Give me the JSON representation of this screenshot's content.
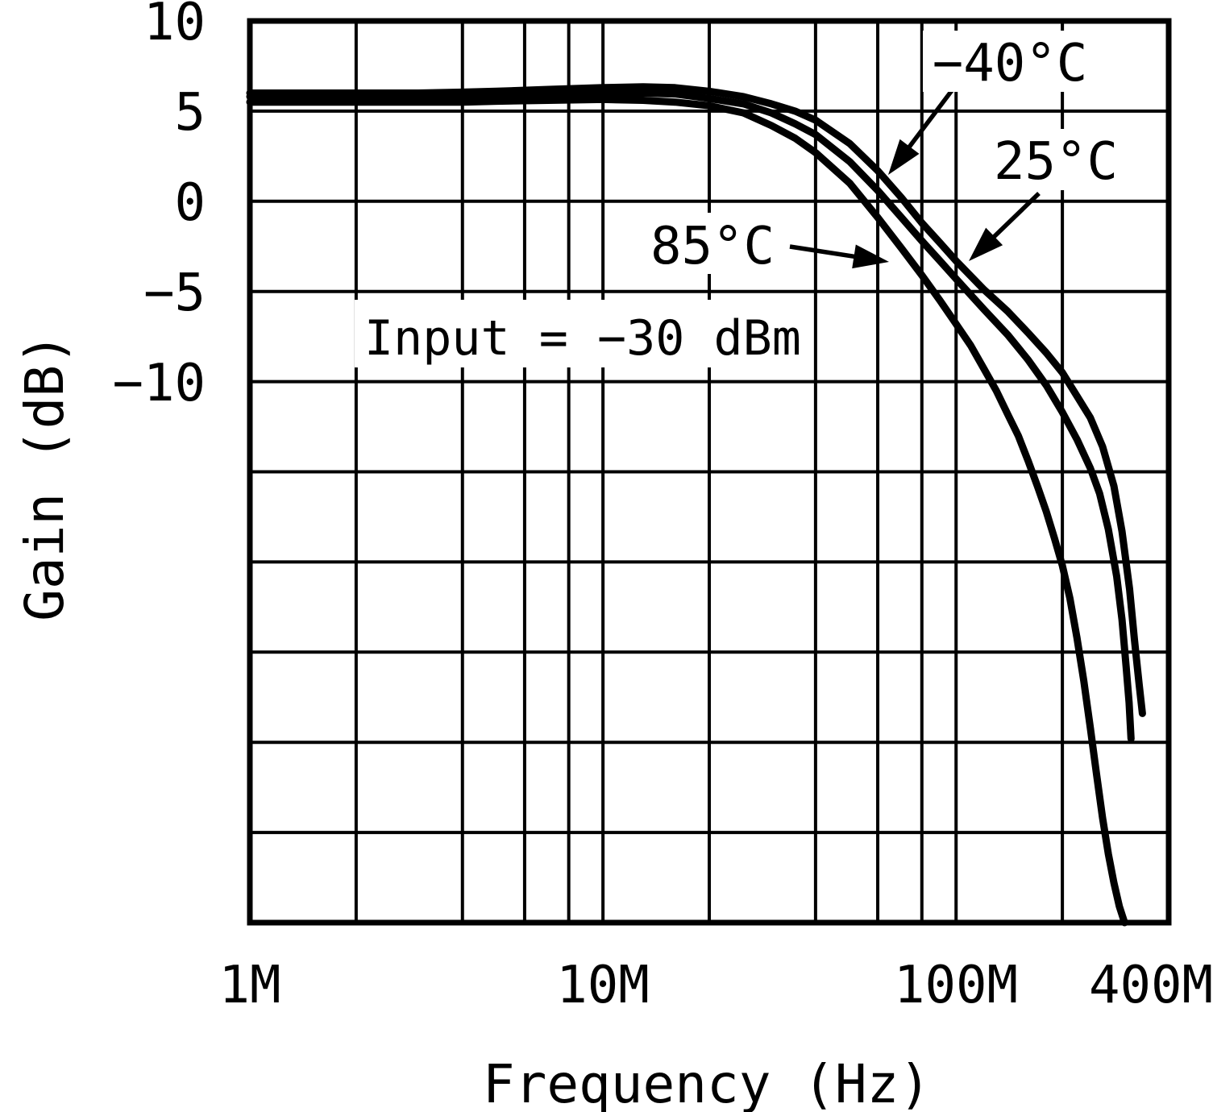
{
  "chart_data": {
    "type": "line",
    "title": "",
    "xlabel": "Frequency (Hz)",
    "ylabel": "Gain (dB)",
    "x_scale": "log",
    "x_unit": "MHz",
    "xlim_MHz": [
      1,
      400
    ],
    "ylim_dB": [
      -40,
      10
    ],
    "grid": true,
    "x_gridlines_MHz": [
      1,
      2,
      4,
      6,
      8,
      10,
      20,
      40,
      60,
      80,
      100,
      200,
      400
    ],
    "y_gridline_step_dB": 5,
    "x_tick_labels": [
      "1M",
      "10M",
      "100M",
      "400M"
    ],
    "x_tick_values_MHz": [
      1,
      10,
      100,
      400
    ],
    "y_tick_labels": [
      "10",
      "5",
      "0",
      "−5",
      "−10"
    ],
    "y_tick_values_dB": [
      10,
      5,
      0,
      -5,
      -10
    ],
    "annotation": "Input = −30 dBm",
    "legend_position": "arrow-annotations-inside-plot",
    "series": [
      {
        "name": "−40°C",
        "points": [
          [
            1,
            6.0
          ],
          [
            1.5,
            6.0
          ],
          [
            2,
            6.0
          ],
          [
            3,
            6.0
          ],
          [
            4,
            6.05
          ],
          [
            5,
            6.1
          ],
          [
            7,
            6.2
          ],
          [
            10,
            6.3
          ],
          [
            13,
            6.35
          ],
          [
            16,
            6.3
          ],
          [
            20,
            6.1
          ],
          [
            25,
            5.8
          ],
          [
            30,
            5.4
          ],
          [
            35,
            5.0
          ],
          [
            40,
            4.5
          ],
          [
            50,
            3.2
          ],
          [
            60,
            1.7
          ],
          [
            70,
            0.2
          ],
          [
            80,
            -1.2
          ],
          [
            90,
            -2.3
          ],
          [
            100,
            -3.3
          ],
          [
            120,
            -4.9
          ],
          [
            140,
            -6.1
          ],
          [
            160,
            -7.3
          ],
          [
            180,
            -8.4
          ],
          [
            200,
            -9.5
          ],
          [
            220,
            -10.8
          ],
          [
            240,
            -12.0
          ],
          [
            260,
            -13.6
          ],
          [
            280,
            -15.8
          ],
          [
            295,
            -18.3
          ],
          [
            310,
            -21.5
          ],
          [
            320,
            -24.3
          ],
          [
            330,
            -26.8
          ],
          [
            337,
            -28.4
          ]
        ]
      },
      {
        "name": "25°C",
        "points": [
          [
            1,
            5.8
          ],
          [
            2,
            5.8
          ],
          [
            3,
            5.8
          ],
          [
            4,
            5.8
          ],
          [
            5,
            5.85
          ],
          [
            7,
            5.9
          ],
          [
            10,
            6.0
          ],
          [
            13,
            6.0
          ],
          [
            16,
            5.95
          ],
          [
            20,
            5.7
          ],
          [
            25,
            5.4
          ],
          [
            30,
            4.9
          ],
          [
            35,
            4.3
          ],
          [
            40,
            3.7
          ],
          [
            50,
            2.2
          ],
          [
            60,
            0.6
          ],
          [
            70,
            -0.9
          ],
          [
            80,
            -2.2
          ],
          [
            90,
            -3.3
          ],
          [
            100,
            -4.3
          ],
          [
            120,
            -6.0
          ],
          [
            140,
            -7.4
          ],
          [
            160,
            -8.8
          ],
          [
            180,
            -10.2
          ],
          [
            200,
            -11.7
          ],
          [
            220,
            -13.2
          ],
          [
            240,
            -14.8
          ],
          [
            255,
            -16.2
          ],
          [
            270,
            -18.2
          ],
          [
            285,
            -20.8
          ],
          [
            295,
            -23.2
          ],
          [
            303,
            -25.8
          ],
          [
            309,
            -27.8
          ],
          [
            313,
            -29.8
          ]
        ]
      },
      {
        "name": "85°C",
        "points": [
          [
            1,
            5.5
          ],
          [
            2,
            5.5
          ],
          [
            3,
            5.5
          ],
          [
            4,
            5.5
          ],
          [
            5,
            5.55
          ],
          [
            7,
            5.6
          ],
          [
            10,
            5.65
          ],
          [
            13,
            5.6
          ],
          [
            16,
            5.5
          ],
          [
            20,
            5.3
          ],
          [
            25,
            4.9
          ],
          [
            30,
            4.2
          ],
          [
            35,
            3.5
          ],
          [
            40,
            2.7
          ],
          [
            50,
            1.0
          ],
          [
            60,
            -0.9
          ],
          [
            70,
            -2.6
          ],
          [
            80,
            -4.1
          ],
          [
            90,
            -5.5
          ],
          [
            100,
            -6.8
          ],
          [
            110,
            -8.0
          ],
          [
            120,
            -9.3
          ],
          [
            130,
            -10.5
          ],
          [
            140,
            -11.8
          ],
          [
            150,
            -13.0
          ],
          [
            160,
            -14.4
          ],
          [
            170,
            -15.8
          ],
          [
            180,
            -17.2
          ],
          [
            190,
            -18.7
          ],
          [
            200,
            -20.2
          ],
          [
            210,
            -22.0
          ],
          [
            220,
            -24.2
          ],
          [
            230,
            -26.6
          ],
          [
            240,
            -29.2
          ],
          [
            250,
            -31.8
          ],
          [
            260,
            -34.2
          ],
          [
            270,
            -36.2
          ],
          [
            280,
            -37.8
          ],
          [
            290,
            -39.1
          ],
          [
            300,
            -40.0
          ]
        ]
      }
    ],
    "colors": {
      "curves": "#000000",
      "grid": "#000000",
      "background": "#ffffff"
    }
  },
  "labels": {
    "minus40": "−40°C",
    "plus25": "25°C",
    "plus85": "85°C"
  }
}
